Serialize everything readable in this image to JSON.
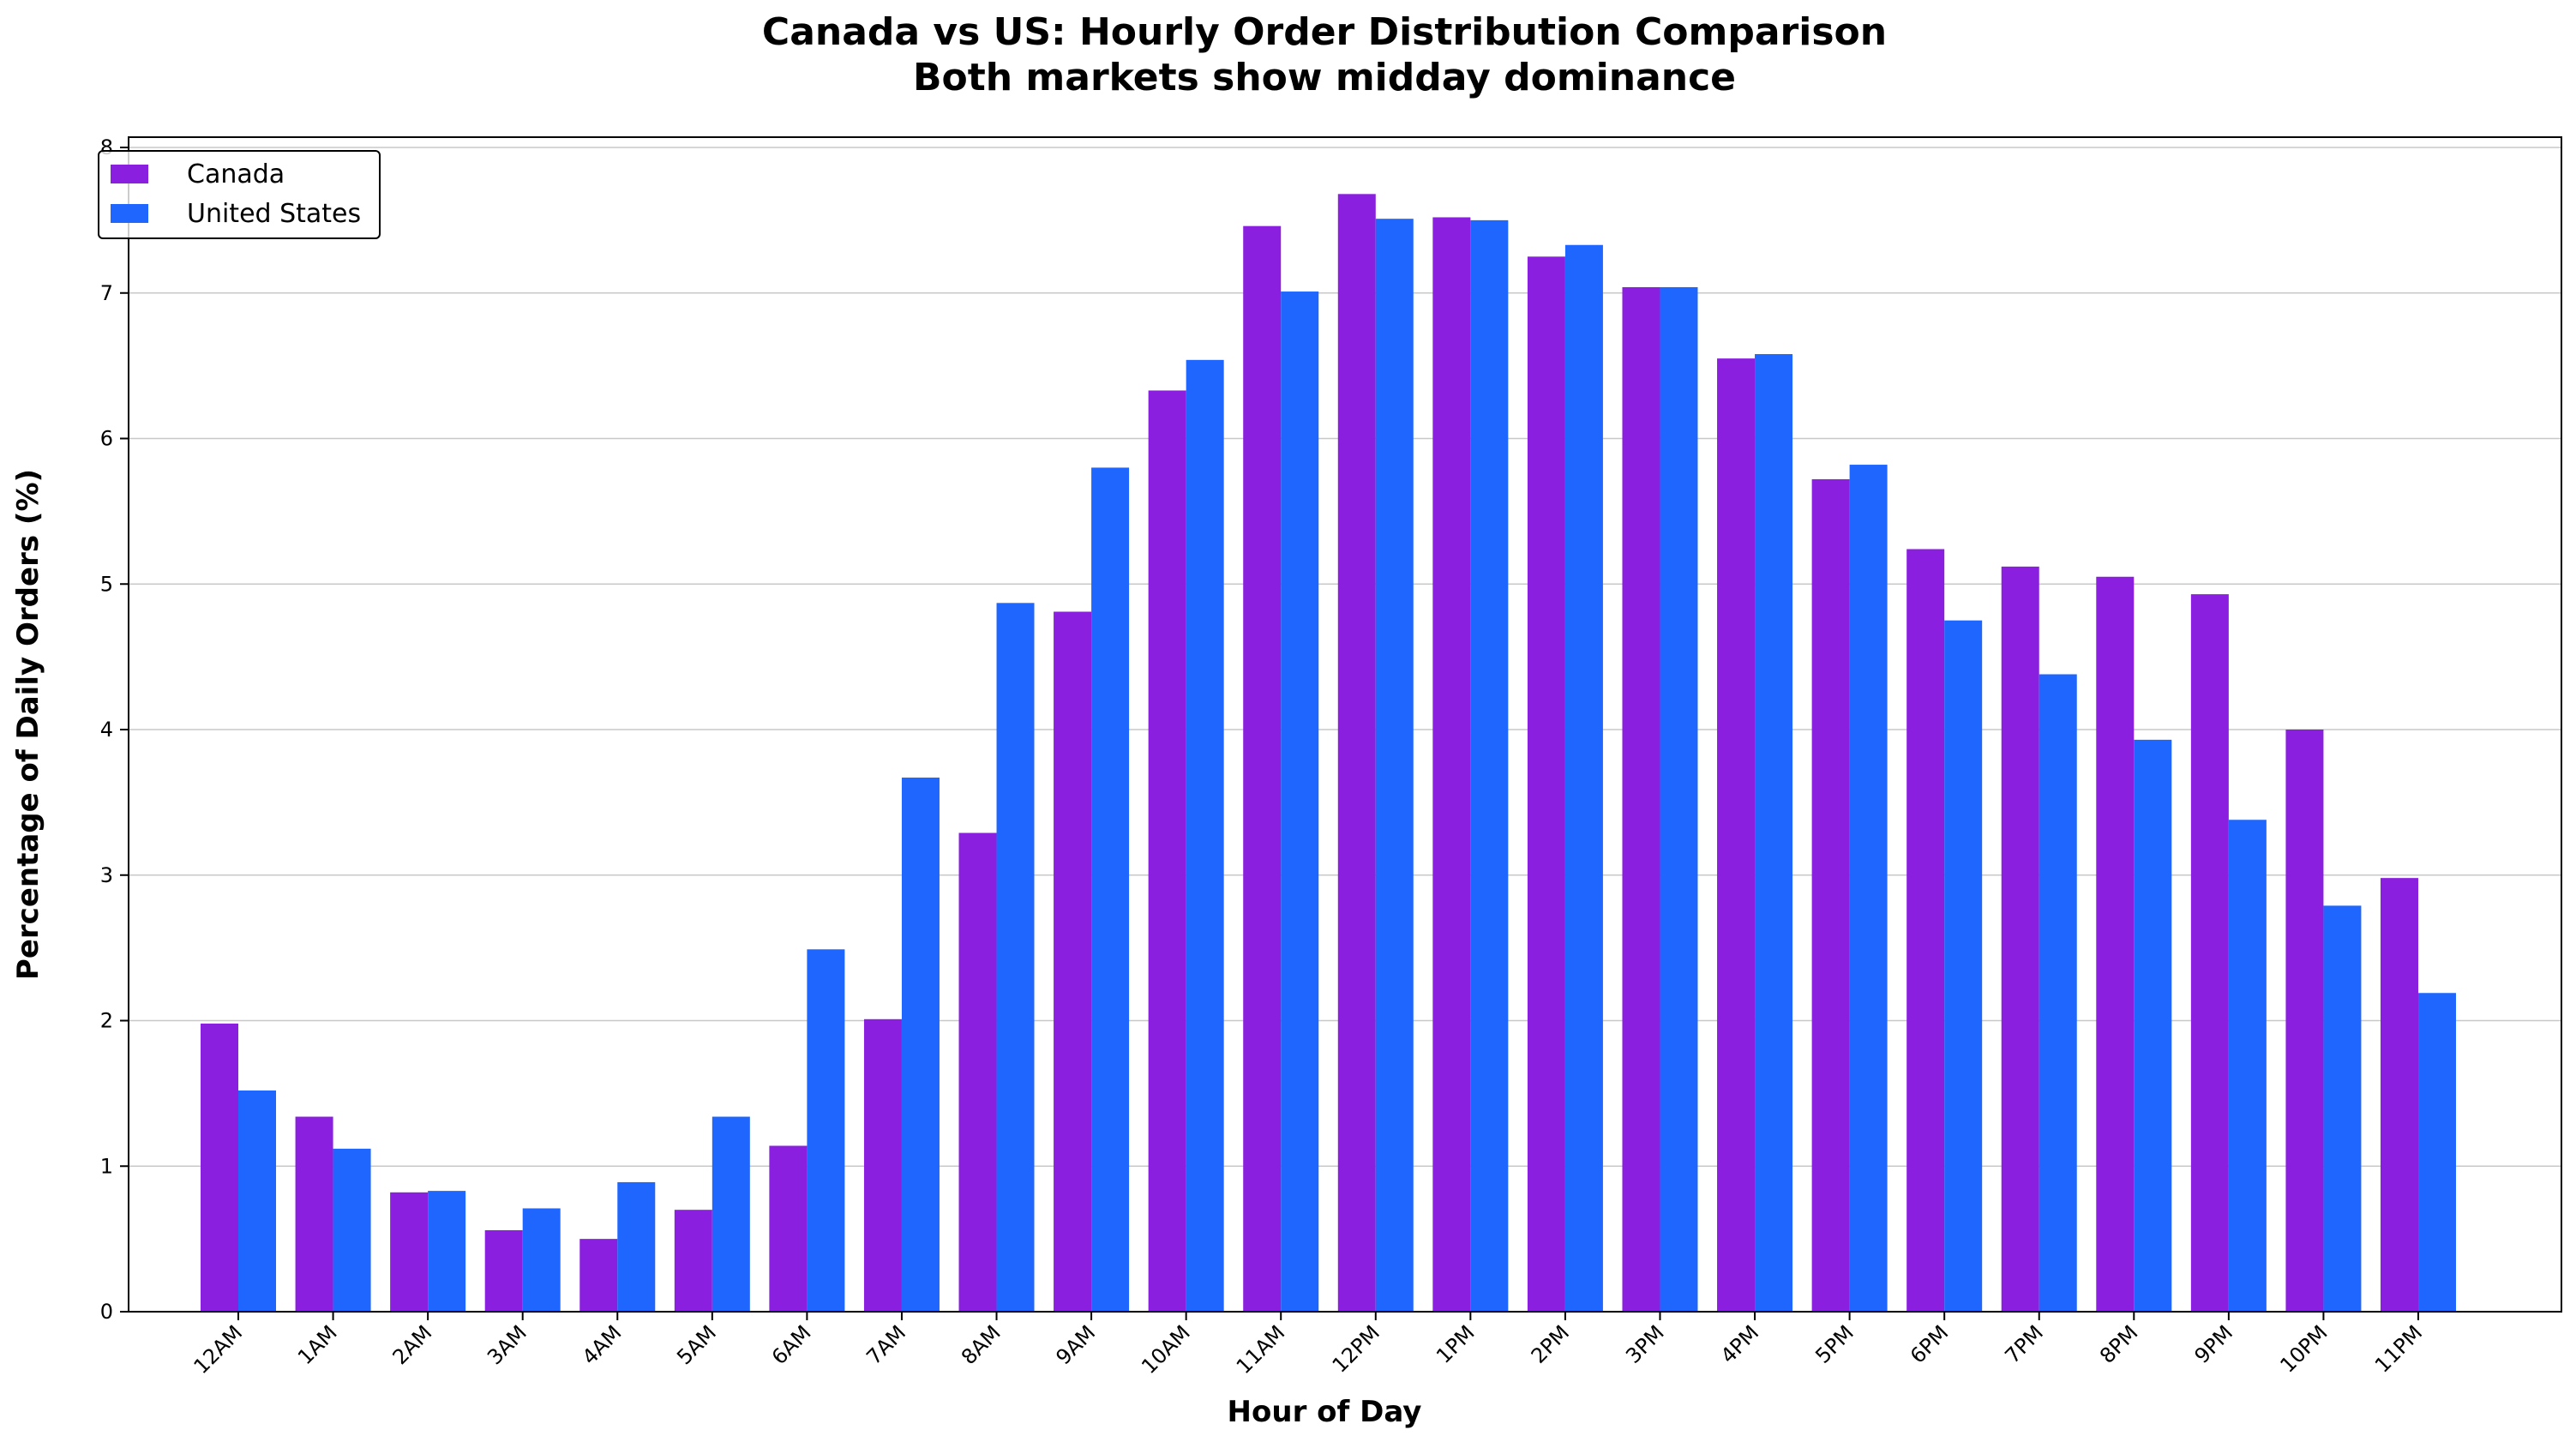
{
  "chart_data": {
    "type": "bar",
    "title": "Canada vs US: Hourly Order Distribution Comparison",
    "subtitle": "Both markets show midday dominance",
    "xlabel": "Hour of Day",
    "ylabel": "Percentage of Daily Orders (%)",
    "ylim": [
      0,
      8
    ],
    "yticks": [
      "0",
      "1",
      "2",
      "3",
      "4",
      "5",
      "6",
      "7",
      "8"
    ],
    "grid": "horizontal",
    "legend_position": "top-left",
    "categories": [
      "12AM",
      "1AM",
      "2AM",
      "3AM",
      "4AM",
      "5AM",
      "6AM",
      "7AM",
      "8AM",
      "9AM",
      "10AM",
      "11AM",
      "12PM",
      "1PM",
      "2PM",
      "3PM",
      "4PM",
      "5PM",
      "6PM",
      "7PM",
      "8PM",
      "9PM",
      "10PM",
      "11PM"
    ],
    "series": [
      {
        "name": "Canada",
        "color": "#8a1fe0",
        "values": [
          1.98,
          1.34,
          0.82,
          0.56,
          0.5,
          0.7,
          1.14,
          2.01,
          3.29,
          4.81,
          6.33,
          7.46,
          7.68,
          7.52,
          7.25,
          7.04,
          6.55,
          5.72,
          5.24,
          5.12,
          5.05,
          4.93,
          4.0,
          2.98
        ]
      },
      {
        "name": "United States",
        "color": "#1f66ff",
        "values": [
          1.52,
          1.12,
          0.83,
          0.71,
          0.89,
          1.34,
          2.49,
          3.67,
          4.87,
          5.8,
          6.54,
          7.01,
          7.51,
          7.5,
          7.33,
          7.04,
          6.58,
          5.82,
          4.75,
          4.38,
          3.93,
          3.38,
          2.79,
          2.19
        ]
      }
    ]
  }
}
